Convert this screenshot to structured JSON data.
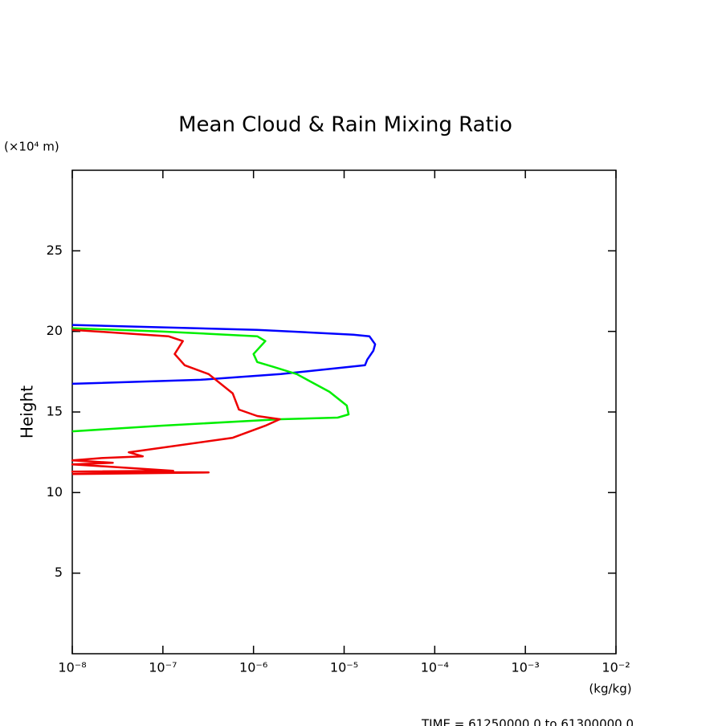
{
  "chart_data": {
    "type": "line",
    "title": "Mean Cloud & Rain Mixing Ratio",
    "ylabel": "Height",
    "yunit": "(×10⁴ m)",
    "xunit": "(kg/kg)",
    "footer": "TIME = 61250000.0 to 61300000.0",
    "xscale": "log",
    "xlim": [
      1e-08,
      0.01
    ],
    "xticks": [
      {
        "value": 1e-08,
        "label": "10⁻⁸"
      },
      {
        "value": 1e-07,
        "label": "10⁻⁷"
      },
      {
        "value": 1e-06,
        "label": "10⁻⁶"
      },
      {
        "value": 1e-05,
        "label": "10⁻⁵"
      },
      {
        "value": 0.0001,
        "label": "10⁻⁴"
      },
      {
        "value": 0.001,
        "label": "10⁻³"
      },
      {
        "value": 0.01,
        "label": "10⁻²"
      }
    ],
    "ylim": [
      0,
      30
    ],
    "yticks": [
      5,
      10,
      15,
      20,
      25
    ],
    "series": [
      {
        "color": "#0000ff",
        "x": [
          1e-08,
          1.1e-06,
          1.26e-05,
          1.9e-05,
          2.2e-05,
          2.1e-05,
          1.8e-05,
          1.7e-05,
          2e-06,
          2.6e-07,
          1e-08
        ],
        "values": [
          20.4,
          20.1,
          19.8,
          19.7,
          19.2,
          18.8,
          18.25,
          17.9,
          17.35,
          17.0,
          16.75
        ]
      },
      {
        "color": "#00ee00",
        "x": [
          1e-08,
          9.5e-08,
          1.1e-06,
          1.35e-06,
          1e-06,
          1.1e-06,
          1.66e-06,
          3e-06,
          6.9e-06,
          1.07e-05,
          1.12e-05,
          8.5e-06,
          2e-06,
          9.5e-08,
          1e-08
        ],
        "values": [
          20.2,
          20.0,
          19.7,
          19.4,
          18.6,
          18.1,
          17.8,
          17.35,
          16.25,
          15.4,
          14.85,
          14.65,
          14.55,
          14.15,
          13.8
        ]
      },
      {
        "color": "#ee0000",
        "x": [
          1e-08,
          1.15e-07,
          1.66e-07,
          1.35e-07,
          1.74e-07,
          3.2e-07,
          5.9e-07,
          6.9e-07,
          1.1e-06,
          1.95e-06,
          1.35e-06,
          5.9e-07,
          4.2e-08,
          6e-08,
          2.2e-08,
          1e-08,
          2.8e-08,
          1e-08,
          1.3e-07,
          1e-08,
          3.2e-07,
          1e-08
        ],
        "values": [
          20.1,
          19.7,
          19.4,
          18.6,
          17.9,
          17.35,
          16.15,
          15.15,
          14.75,
          14.55,
          14.15,
          13.4,
          12.5,
          12.25,
          12.15,
          12.0,
          11.85,
          11.75,
          11.35,
          11.3,
          11.25,
          11.15
        ]
      }
    ]
  }
}
